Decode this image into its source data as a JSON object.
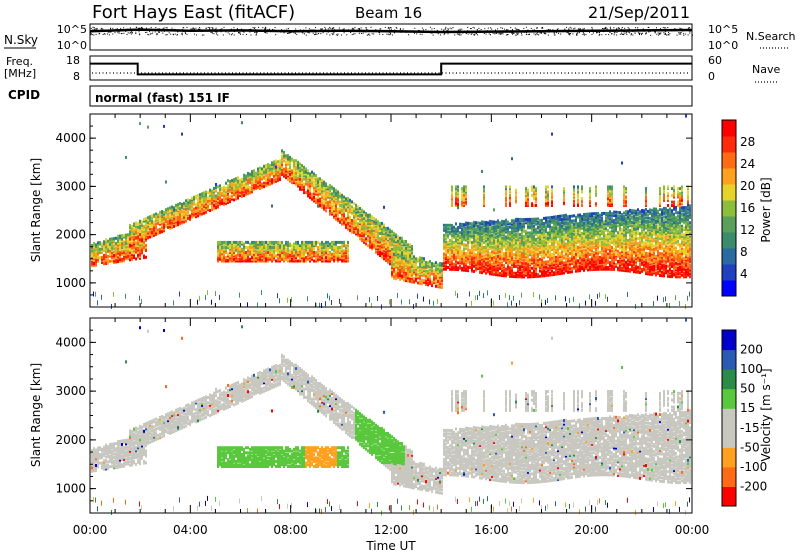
{
  "header": {
    "station": "Fort Hays East (fitACF)",
    "beam": "Beam 16",
    "date": "21/Sep/2011"
  },
  "top_panels": {
    "nsky_label": "N.Sky",
    "nsky_ticks": [
      "10^5",
      "10^0"
    ],
    "nsearch_label": "N.Search",
    "nsearch_ticks": [
      "10^5",
      "10^0"
    ],
    "freq_label": "Freq.",
    "freq_unit": "[MHz]",
    "freq_ticks": [
      "18",
      "8"
    ],
    "nave_label": "Nave",
    "nave_ticks": [
      "60",
      "0"
    ],
    "cpid_label": "CPID",
    "cpid_value": "normal (fast) 151 IF"
  },
  "colors": {
    "power": [
      "#0000ff",
      "#2040c0",
      "#2a6aa0",
      "#3b8c6c",
      "#5aa05a",
      "#8cbe3c",
      "#e6d22a",
      "#ffa01e",
      "#ff6a14",
      "#ff2a0a",
      "#ff0000"
    ],
    "velocity": [
      "#ff0000",
      "#ff6a14",
      "#ffa01e",
      "#c8c8c0",
      "#c8c8c0",
      "#5ac83c",
      "#2a8c46",
      "#2a5ab4",
      "#0000c8"
    ]
  },
  "chart_data": [
    {
      "type": "line",
      "name": "nsky-panel",
      "ylabel": "N.Sky",
      "x_range_hours": [
        0,
        24
      ],
      "series": [
        {
          "points": [
            [
              0,
              4.2
            ],
            [
              2,
              4.6
            ],
            [
              4,
              4.3
            ],
            [
              6,
              4.4
            ],
            [
              8,
              4.2
            ],
            [
              10,
              4.3
            ],
            [
              12,
              4.2
            ],
            [
              14,
              4.0
            ],
            [
              16,
              4.1
            ],
            [
              18,
              4.2
            ],
            [
              20,
              4.3
            ],
            [
              22,
              4.4
            ],
            [
              24,
              4.5
            ]
          ]
        }
      ]
    },
    {
      "type": "line",
      "name": "freq-panel",
      "ylabel": "Freq. [MHz]",
      "x_range_hours": [
        0,
        24
      ],
      "ylim": [
        8,
        18
      ],
      "series": [
        {
          "points": [
            [
              0,
              16
            ],
            [
              1.9,
              16
            ],
            [
              1.9,
              10
            ],
            [
              14,
              10
            ],
            [
              14,
              16
            ],
            [
              24,
              16
            ]
          ]
        }
      ]
    },
    {
      "type": "heatmap",
      "name": "power-panel",
      "ylabel": "Slant Range [km]",
      "x_range_hours": [
        0,
        24
      ],
      "ylim": [
        500,
        4500
      ],
      "yticks": [
        1000,
        2000,
        3000,
        4000
      ],
      "colorbar_label": "Power [dB]",
      "colorbar_ticks": [
        "28",
        "24",
        "20",
        "16",
        "12",
        "8",
        "4"
      ]
    },
    {
      "type": "heatmap",
      "name": "velocity-panel",
      "ylabel": "Slant Range [km]",
      "xlabel": "Time UT",
      "x_range_hours": [
        0,
        24
      ],
      "ylim": [
        500,
        4500
      ],
      "yticks": [
        1000,
        2000,
        3000,
        4000
      ],
      "xtick_labels": [
        "00:00",
        "04:00",
        "08:00",
        "12:00",
        "16:00",
        "20:00",
        "00:00"
      ],
      "colorbar_label": "Velocity [m s⁻¹]",
      "colorbar_ticks": [
        "200",
        "100",
        "50",
        "15",
        "-15",
        "-50",
        "-100",
        "-200"
      ]
    }
  ]
}
